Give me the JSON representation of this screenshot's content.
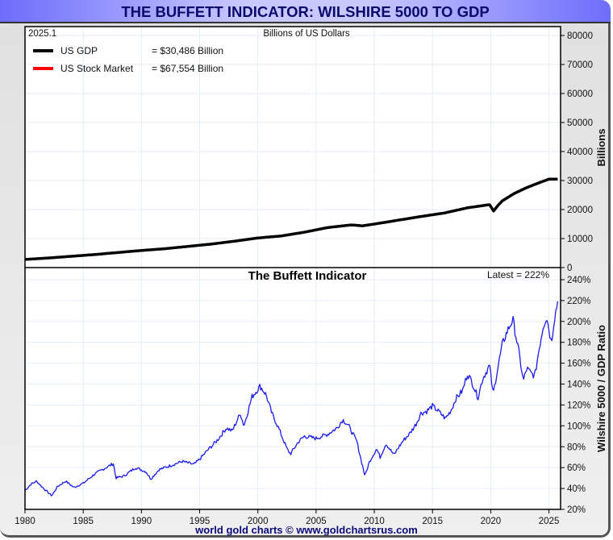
{
  "window": {
    "title": "THE BUFFETT INDICATOR: WILSHIRE 5000 TO GDP",
    "footer": "world gold charts © www.goldchartsrus.com"
  },
  "colors": {
    "gdp": "#000000",
    "market": "#ff0000",
    "ratio": "#1a1aee",
    "title_text": "#0a0a6e",
    "grid": "#e4eef6"
  },
  "chart_data": [
    {
      "type": "line",
      "title": "Billions of US Dollars",
      "date_label": "2025.1",
      "ylabel": "Billions",
      "xlim": [
        1980,
        2026
      ],
      "ylim": [
        0,
        80000
      ],
      "y_ticks": [
        "0",
        "10000",
        "20000",
        "30000",
        "40000",
        "50000",
        "60000",
        "70000",
        "80000"
      ],
      "x_ticks": [
        "1980",
        "1985",
        "1990",
        "1995",
        "2000",
        "2005",
        "2010",
        "2015",
        "2020",
        "2025"
      ],
      "grid": true,
      "legend_position": "top-left",
      "legend": [
        {
          "name": "US GDP",
          "value_text": "= $30,486 Billion",
          "color_key": "gdp"
        },
        {
          "name": "US Stock Market",
          "value_text": "= $67,554 Billion",
          "color_key": "market"
        }
      ],
      "series": [
        {
          "name": "US GDP",
          "points": [
            [
              1980,
              2800
            ],
            [
              1982,
              3300
            ],
            [
              1984,
              3900
            ],
            [
              1986,
              4500
            ],
            [
              1988,
              5200
            ],
            [
              1990,
              5900
            ],
            [
              1992,
              6500
            ],
            [
              1994,
              7300
            ],
            [
              1996,
              8100
            ],
            [
              1998,
              9100
            ],
            [
              2000,
              10200
            ],
            [
              2002,
              10900
            ],
            [
              2004,
              12200
            ],
            [
              2006,
              13800
            ],
            [
              2008,
              14700
            ],
            [
              2009,
              14400
            ],
            [
              2010,
              15000
            ],
            [
              2012,
              16300
            ],
            [
              2014,
              17600
            ],
            [
              2016,
              18800
            ],
            [
              2018,
              20600
            ],
            [
              2019.9,
              21700
            ],
            [
              2020.25,
              19500
            ],
            [
              2020.6,
              21300
            ],
            [
              2021,
              23000
            ],
            [
              2022,
              25500
            ],
            [
              2023,
              27400
            ],
            [
              2024,
              29000
            ],
            [
              2025,
              30486
            ],
            [
              2025.8,
              30486
            ]
          ]
        },
        {
          "name": "US Stock Market",
          "derived_from": "ratio x GDP",
          "points": []
        }
      ]
    },
    {
      "type": "line",
      "title": "The Buffett Indicator",
      "annotation": "Latest = 222%",
      "ylabel": "Wilshire 5000 / GDP Ratio",
      "xlim": [
        1980,
        2026
      ],
      "ylim": [
        20,
        240
      ],
      "y_ticks": [
        "20%",
        "40%",
        "60%",
        "80%",
        "100%",
        "120%",
        "140%",
        "160%",
        "180%",
        "200%",
        "220%",
        "240%"
      ],
      "x_ticks": [
        "1980",
        "1985",
        "1990",
        "1995",
        "2000",
        "2005",
        "2010",
        "2015",
        "2020",
        "2025"
      ],
      "grid": true,
      "series": [
        {
          "name": "Wilshire 5000 / GDP Ratio",
          "points": [
            [
              1980,
              38
            ],
            [
              1980.5,
              44
            ],
            [
              1981,
              47
            ],
            [
              1981.6,
              40
            ],
            [
              1982.3,
              33
            ],
            [
              1982.8,
              42
            ],
            [
              1983.5,
              47
            ],
            [
              1984.2,
              41
            ],
            [
              1985,
              45
            ],
            [
              1986,
              54
            ],
            [
              1987.6,
              64
            ],
            [
              1987.8,
              50
            ],
            [
              1988.5,
              52
            ],
            [
              1989.5,
              60
            ],
            [
              1990.4,
              56
            ],
            [
              1990.8,
              49
            ],
            [
              1991.5,
              58
            ],
            [
              1992.5,
              62
            ],
            [
              1993.5,
              66
            ],
            [
              1994.5,
              63
            ],
            [
              1995,
              68
            ],
            [
              1995.8,
              78
            ],
            [
              1996.5,
              86
            ],
            [
              1997.3,
              98
            ],
            [
              1997.8,
              95
            ],
            [
              1998.5,
              112
            ],
            [
              1998.8,
              100
            ],
            [
              1999.5,
              128
            ],
            [
              2000.2,
              138
            ],
            [
              2000.7,
              130
            ],
            [
              2001.2,
              112
            ],
            [
              2001.7,
              100
            ],
            [
              2002.5,
              78
            ],
            [
              2002.8,
              73
            ],
            [
              2003.5,
              85
            ],
            [
              2004,
              90
            ],
            [
              2005,
              88
            ],
            [
              2006,
              92
            ],
            [
              2006.8,
              98
            ],
            [
              2007.3,
              106
            ],
            [
              2007.8,
              100
            ],
            [
              2008.5,
              85
            ],
            [
              2008.9,
              66
            ],
            [
              2009.2,
              52
            ],
            [
              2009.6,
              66
            ],
            [
              2010.2,
              78
            ],
            [
              2010.5,
              70
            ],
            [
              2011,
              83
            ],
            [
              2011.7,
              72
            ],
            [
              2012,
              78
            ],
            [
              2012.5,
              86
            ],
            [
              2013,
              92
            ],
            [
              2013.6,
              102
            ],
            [
              2014,
              112
            ],
            [
              2014.5,
              114
            ],
            [
              2015,
              119
            ],
            [
              2015.7,
              112
            ],
            [
              2016.1,
              107
            ],
            [
              2016.6,
              115
            ],
            [
              2017,
              126
            ],
            [
              2017.6,
              134
            ],
            [
              2018,
              150
            ],
            [
              2018.4,
              142
            ],
            [
              2018.9,
              127
            ],
            [
              2019.3,
              145
            ],
            [
              2019.9,
              158
            ],
            [
              2020.2,
              130
            ],
            [
              2020.6,
              155
            ],
            [
              2021,
              178
            ],
            [
              2021.4,
              190
            ],
            [
              2021.9,
              202
            ],
            [
              2022.4,
              172
            ],
            [
              2022.8,
              143
            ],
            [
              2023.1,
              155
            ],
            [
              2023.5,
              150
            ],
            [
              2023.8,
              148
            ],
            [
              2024.1,
              170
            ],
            [
              2024.5,
              195
            ],
            [
              2024.8,
              205
            ],
            [
              2025.2,
              180
            ],
            [
              2025.5,
              205
            ],
            [
              2025.8,
              222
            ]
          ]
        }
      ]
    }
  ]
}
